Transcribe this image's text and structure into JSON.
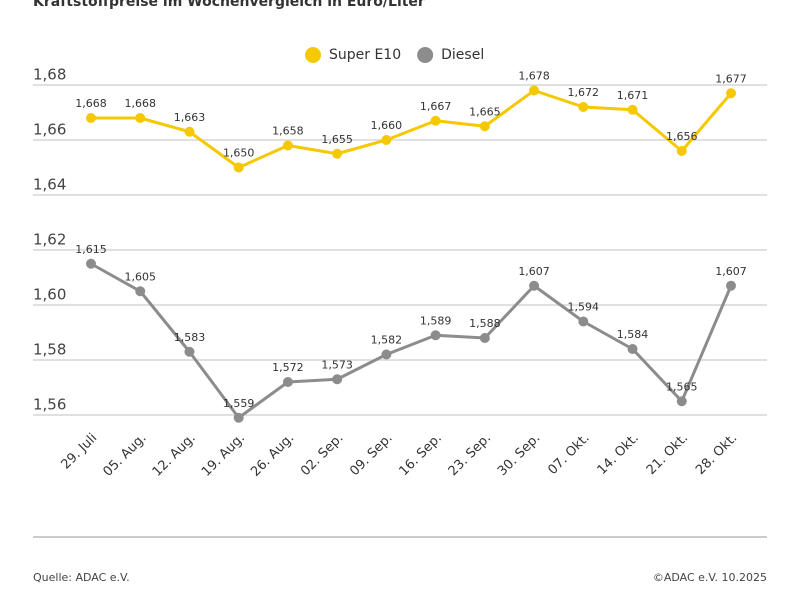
{
  "chart_data": {
    "type": "line",
    "title": "Kraftstoffpreise im Wochenvergleich in Euro/Liter",
    "categories": [
      "29. Juli",
      "05. Aug.",
      "12. Aug.",
      "19. Aug.",
      "26. Aug.",
      "02. Sep.",
      "09. Sep.",
      "16. Sep.",
      "23. Sep.",
      "30. Sep.",
      "07. Okt.",
      "14. Okt.",
      "21. Okt.",
      "28. Okt."
    ],
    "series": [
      {
        "name": "Super E10",
        "color": "#f5c800",
        "values": [
          1.668,
          1.668,
          1.663,
          1.65,
          1.658,
          1.655,
          1.66,
          1.667,
          1.665,
          1.678,
          1.672,
          1.671,
          1.656,
          1.677
        ],
        "value_labels": [
          "1,668",
          "1,668",
          "1,663",
          "1,650",
          "1,658",
          "1,655",
          "1,660",
          "1,667",
          "1,665",
          "1,678",
          "1,672",
          "1,671",
          "1,656",
          "1,677"
        ]
      },
      {
        "name": "Diesel",
        "color": "#8c8c8c",
        "values": [
          1.615,
          1.605,
          1.583,
          1.559,
          1.572,
          1.573,
          1.582,
          1.589,
          1.588,
          1.607,
          1.594,
          1.584,
          1.565,
          1.607
        ],
        "value_labels": [
          "1,615",
          "1,605",
          "1,583",
          "1,559",
          "1,572",
          "1,573",
          "1,582",
          "1,589",
          "1,588",
          "1,607",
          "1,594",
          "1,584",
          "1,565",
          "1,607"
        ]
      }
    ],
    "ylim": [
      1.56,
      1.68
    ],
    "yticks": [
      {
        "value": 1.56,
        "label": "1,56"
      },
      {
        "value": 1.58,
        "label": "1,58"
      },
      {
        "value": 1.6,
        "label": "1,60"
      },
      {
        "value": 1.62,
        "label": "1,62"
      },
      {
        "value": 1.64,
        "label": "1,64"
      },
      {
        "value": 1.66,
        "label": "1,66"
      },
      {
        "value": 1.68,
        "label": "1,68"
      }
    ],
    "grid": true,
    "legend": "top",
    "source": "Quelle: ADAC e.V.",
    "copyright": "©ADAC e.V. 10.2025"
  }
}
